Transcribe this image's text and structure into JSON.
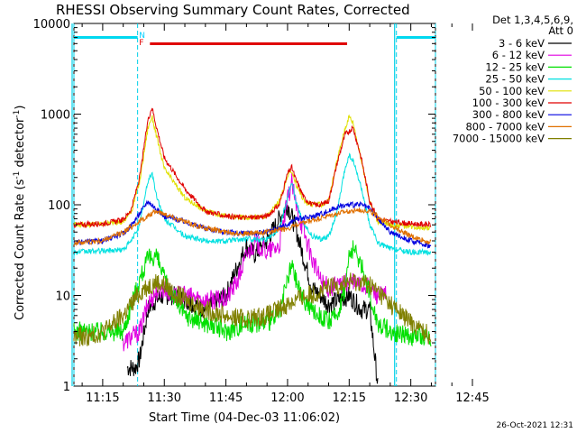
{
  "chart_data": {
    "type": "line",
    "title": "RHESSI Observing Summary Count Rates, Corrected",
    "ylabel": "Corrected Count Rate (s⁻¹ detector⁻¹)",
    "ylabel_main": "Corrected Count Rate (s",
    "ylabel_sup1": "-1",
    "ylabel_mid": " detector",
    "ylabel_sup2": "-1",
    "ylabel_end": ")",
    "xlabel": "Start Time (04-Dec-03 11:06:02)",
    "y_scale": "log",
    "ylim": [
      1,
      10000
    ],
    "y_ticks": [
      {
        "value": 1,
        "label": "1"
      },
      {
        "value": 10,
        "label": "10"
      },
      {
        "value": 100,
        "label": "100"
      },
      {
        "value": 1000,
        "label": "1000"
      },
      {
        "value": 10000,
        "label": "10000"
      }
    ],
    "xlim_min": [
      8,
      96
    ],
    "x_ticks": [
      {
        "value": 15,
        "label": "11:15"
      },
      {
        "value": 30,
        "label": "11:30"
      },
      {
        "value": 45,
        "label": "11:45"
      },
      {
        "value": 60,
        "label": "12:00"
      },
      {
        "value": 75,
        "label": "12:15"
      },
      {
        "value": 90,
        "label": "12:30"
      },
      {
        "value": 105,
        "label": "12:45"
      }
    ],
    "x_note": "x values are minutes after 11:00 UT",
    "legend": {
      "header": "Det 1,3,4,5,6,9,",
      "att": "Att 0",
      "placement": "right"
    },
    "series": [
      {
        "name": "3 - 6 keV",
        "color": "#000000",
        "x": [
          21,
          22,
          23,
          24,
          26,
          28,
          30,
          32,
          35,
          40,
          45,
          48,
          50,
          52,
          55,
          58,
          60,
          62,
          64,
          66,
          68,
          70,
          75,
          78,
          80,
          82
        ],
        "y": [
          1.6,
          1.6,
          1.6,
          2,
          7,
          9,
          10,
          10,
          9,
          7,
          10,
          22,
          35,
          28,
          40,
          70,
          100,
          55,
          25,
          12,
          10,
          8,
          10,
          7,
          7,
          1
        ]
      },
      {
        "name": "6 - 12 keV",
        "color": "#e000e0",
        "x": [
          20,
          22,
          24,
          26,
          28,
          30,
          32,
          35,
          40,
          45,
          48,
          50,
          52,
          55,
          58,
          60,
          61,
          62,
          64,
          66,
          68,
          70,
          75,
          78,
          80,
          82,
          84
        ],
        "y": [
          3,
          3.5,
          4,
          8,
          11,
          12,
          10,
          10,
          9,
          9,
          15,
          28,
          38,
          30,
          35,
          110,
          180,
          100,
          50,
          25,
          15,
          12,
          14,
          13,
          12,
          10,
          10
        ]
      },
      {
        "name": "12 - 25 keV",
        "color": "#00e000",
        "x": [
          8,
          15,
          20,
          22,
          24,
          26,
          28,
          30,
          35,
          40,
          45,
          50,
          55,
          58,
          60,
          61,
          62,
          64,
          66,
          68,
          70,
          72,
          74,
          75,
          76,
          78,
          80,
          82,
          85,
          90,
          95
        ],
        "y": [
          4,
          4,
          4,
          8,
          15,
          25,
          28,
          15,
          6,
          5,
          4,
          5,
          5,
          6,
          15,
          22,
          15,
          9,
          7,
          6,
          5,
          6,
          12,
          28,
          32,
          22,
          10,
          5,
          4,
          3.5,
          3.5
        ]
      },
      {
        "name": "25 - 50 keV",
        "color": "#00e0e0",
        "x": [
          8,
          15,
          20,
          22,
          24,
          26,
          27,
          28,
          30,
          35,
          40,
          45,
          50,
          55,
          58,
          60,
          61,
          62,
          64,
          66,
          68,
          70,
          72,
          74,
          75,
          76,
          78,
          80,
          82,
          85,
          90,
          95
        ],
        "y": [
          30,
          31,
          32,
          40,
          60,
          180,
          230,
          130,
          70,
          45,
          40,
          40,
          42,
          42,
          55,
          120,
          180,
          110,
          60,
          45,
          42,
          45,
          80,
          250,
          350,
          300,
          150,
          60,
          38,
          33,
          30,
          30
        ]
      },
      {
        "name": "50 - 100 keV",
        "color": "#e0e000",
        "x": [
          8,
          15,
          20,
          22,
          24,
          26,
          27,
          28,
          30,
          35,
          40,
          45,
          50,
          55,
          58,
          60,
          61,
          62,
          64,
          66,
          68,
          70,
          72,
          74,
          75,
          76,
          78,
          80,
          82,
          85,
          90,
          95
        ],
        "y": [
          60,
          62,
          65,
          85,
          180,
          700,
          950,
          600,
          250,
          120,
          85,
          75,
          72,
          75,
          110,
          200,
          240,
          170,
          110,
          100,
          100,
          110,
          300,
          700,
          950,
          800,
          300,
          110,
          65,
          60,
          58,
          55
        ]
      },
      {
        "name": "100 - 300 keV",
        "color": "#e00000",
        "x": [
          8,
          15,
          20,
          22,
          24,
          26,
          27,
          28,
          30,
          35,
          40,
          45,
          50,
          55,
          58,
          60,
          61,
          62,
          64,
          66,
          68,
          70,
          72,
          74,
          75,
          76,
          78,
          80,
          82,
          85,
          90,
          95
        ],
        "y": [
          60,
          62,
          68,
          90,
          200,
          850,
          1200,
          750,
          330,
          150,
          85,
          75,
          72,
          75,
          100,
          220,
          260,
          190,
          120,
          100,
          100,
          110,
          280,
          600,
          650,
          700,
          320,
          110,
          70,
          65,
          62,
          60
        ]
      },
      {
        "name": "300 - 800 keV",
        "color": "#0000e0",
        "x": [
          8,
          15,
          20,
          22,
          24,
          26,
          28,
          30,
          35,
          40,
          45,
          50,
          55,
          60,
          62,
          65,
          70,
          72,
          75,
          78,
          80,
          82,
          85,
          90,
          95
        ],
        "y": [
          38,
          40,
          48,
          60,
          80,
          110,
          90,
          75,
          65,
          55,
          50,
          48,
          50,
          60,
          70,
          72,
          85,
          95,
          100,
          100,
          90,
          70,
          50,
          40,
          35
        ]
      },
      {
        "name": "800 - 7000 keV",
        "color": "#e07000",
        "x": [
          8,
          15,
          20,
          25,
          28,
          30,
          35,
          40,
          45,
          50,
          55,
          60,
          65,
          70,
          75,
          78,
          80,
          85,
          90,
          95
        ],
        "y": [
          38,
          40,
          50,
          70,
          85,
          80,
          65,
          55,
          50,
          48,
          50,
          55,
          65,
          75,
          85,
          88,
          85,
          60,
          45,
          38
        ]
      },
      {
        "name": "7000 - 15000 keV",
        "color": "#808000",
        "x": [
          8,
          12,
          15,
          18,
          20,
          22,
          25,
          28,
          30,
          32,
          35,
          40,
          45,
          50,
          55,
          58,
          60,
          62,
          65,
          68,
          70,
          72,
          75,
          78,
          80,
          82,
          85,
          88,
          90,
          95
        ],
        "y": [
          3.5,
          3.5,
          4,
          5,
          6,
          8,
          12,
          14,
          13,
          11,
          9,
          7,
          6,
          5.5,
          6,
          7,
          8,
          9,
          10,
          11,
          12,
          13,
          14,
          14,
          13,
          11,
          8,
          6,
          5,
          3.5
        ]
      }
    ],
    "saa_bars": [
      [
        8,
        23.5
      ],
      [
        86.5,
        96
      ]
    ],
    "night_lines": [
      8,
      23.5,
      86.5,
      96
    ],
    "flare_bar": [
      26.5,
      74.5
    ],
    "flag_letters": [
      {
        "text": "N",
        "color": "#00d0ff"
      },
      {
        "text": "F",
        "color": "#e00000"
      }
    ]
  },
  "stamp": "26-Oct-2021 12:31"
}
